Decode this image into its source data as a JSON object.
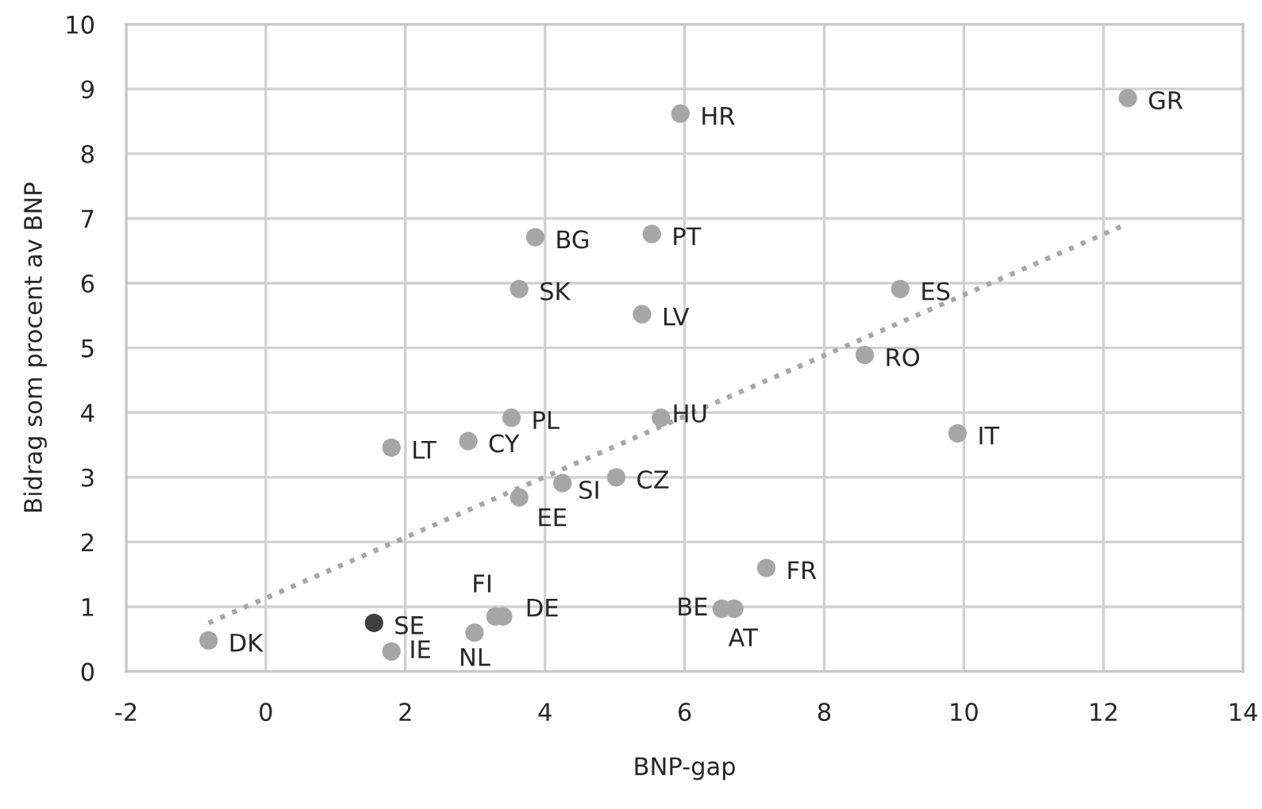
{
  "chart_data": {
    "type": "scatter",
    "xlabel": "BNP-gap",
    "ylabel": "Bidrag som procent av BNP",
    "xlim": [
      -2,
      14
    ],
    "xticks": [
      -2,
      0,
      2,
      4,
      6,
      8,
      10,
      12,
      14
    ],
    "ylim": [
      0,
      10
    ],
    "yticks": [
      0,
      1,
      2,
      3,
      4,
      5,
      6,
      7,
      8,
      9,
      10
    ],
    "grid": true,
    "legend": false,
    "marker": "circle",
    "series": [
      {
        "color": "#a6a6a6",
        "x": [
          -0.82,
          1.55,
          1.8,
          2.99,
          3.29,
          3.4,
          1.8,
          2.9,
          3.52,
          3.63,
          4.25,
          5.02,
          5.66,
          3.86,
          3.63,
          5.39,
          5.53,
          5.94,
          9.09,
          8.58,
          9.91,
          12.35,
          7.17,
          6.53,
          6.71
        ],
        "values": [
          0.48,
          0.75,
          0.31,
          0.6,
          0.85,
          0.85,
          3.46,
          3.56,
          3.92,
          2.69,
          2.91,
          3.0,
          3.92,
          6.71,
          5.91,
          5.52,
          6.76,
          8.62,
          5.91,
          4.89,
          3.68,
          8.86,
          1.6,
          0.97,
          0.97
        ],
        "colors": [
          null,
          "#404040",
          null,
          null,
          null,
          null,
          null,
          null,
          null,
          null,
          null,
          null,
          null,
          null,
          null,
          null,
          null,
          null,
          null,
          null,
          null,
          null,
          null,
          null,
          null
        ]
      },
      {
        "type": "line",
        "color": "#a6a6a6",
        "line_style": "dotted",
        "marker": "none",
        "x": [
          -0.82,
          12.35
        ],
        "values": [
          0.75,
          6.92
        ]
      }
    ],
    "annotations": [
      {
        "text": "DK",
        "x": -0.82,
        "y": 0.48
      },
      {
        "text": "SE",
        "x": 1.55,
        "y": 0.75
      },
      {
        "text": "IE",
        "x": 1.8,
        "y": 0.31
      },
      {
        "text": "NL",
        "x": 2.99,
        "y": 0.6
      },
      {
        "text": "FI",
        "x": 3.29,
        "y": 0.85
      },
      {
        "text": "DE",
        "x": 3.4,
        "y": 0.85
      },
      {
        "text": "LT",
        "x": 1.8,
        "y": 3.46
      },
      {
        "text": "CY",
        "x": 2.9,
        "y": 3.56
      },
      {
        "text": "PL",
        "x": 3.52,
        "y": 3.92
      },
      {
        "text": "EE",
        "x": 3.63,
        "y": 2.69
      },
      {
        "text": "SI",
        "x": 4.25,
        "y": 2.91
      },
      {
        "text": "CZ",
        "x": 5.02,
        "y": 3.0
      },
      {
        "text": "HU",
        "x": 5.66,
        "y": 3.92
      },
      {
        "text": "BG",
        "x": 3.86,
        "y": 6.71
      },
      {
        "text": "SK",
        "x": 3.63,
        "y": 5.91
      },
      {
        "text": "LV",
        "x": 5.39,
        "y": 5.52
      },
      {
        "text": "PT",
        "x": 5.53,
        "y": 6.76
      },
      {
        "text": "HR",
        "x": 5.94,
        "y": 8.62
      },
      {
        "text": "ES",
        "x": 9.09,
        "y": 5.91
      },
      {
        "text": "RO",
        "x": 8.58,
        "y": 4.89
      },
      {
        "text": "IT",
        "x": 9.91,
        "y": 3.68
      },
      {
        "text": "GR",
        "x": 12.35,
        "y": 8.86
      },
      {
        "text": "FR",
        "x": 7.17,
        "y": 1.6
      },
      {
        "text": "BE",
        "x": 6.53,
        "y": 0.97
      },
      {
        "text": "AT",
        "x": 6.71,
        "y": 0.97
      }
    ]
  }
}
